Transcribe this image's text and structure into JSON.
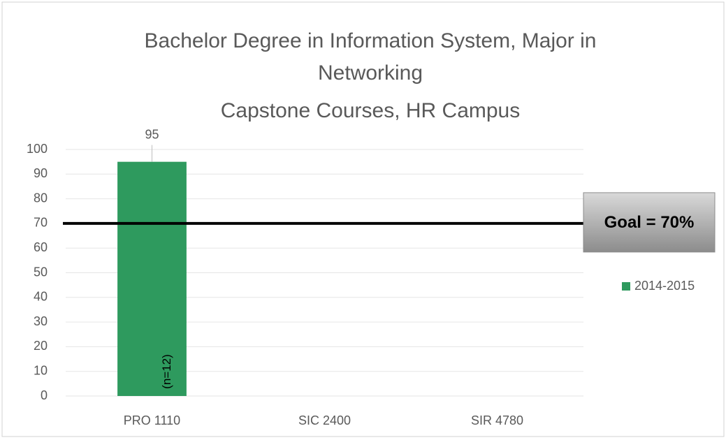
{
  "chart_data": {
    "type": "bar",
    "title": [
      "Bachelor Degree in Information System, Major in",
      "Networking",
      "Capstone Courses, HR Campus"
    ],
    "categories": [
      "PRO 1110",
      "SIC 2400",
      "SIR 4780"
    ],
    "series": [
      {
        "name": "2014-2015",
        "color": "#2e9a5e",
        "values": [
          95,
          null,
          null
        ]
      }
    ],
    "ylim": [
      0,
      100
    ],
    "yticks": [
      0,
      10,
      20,
      30,
      40,
      50,
      60,
      70,
      80,
      90,
      100
    ],
    "grid": true,
    "annotation": "(n=12)",
    "goal": {
      "value": 70,
      "label": "Goal = 70%"
    },
    "legend": "right"
  }
}
